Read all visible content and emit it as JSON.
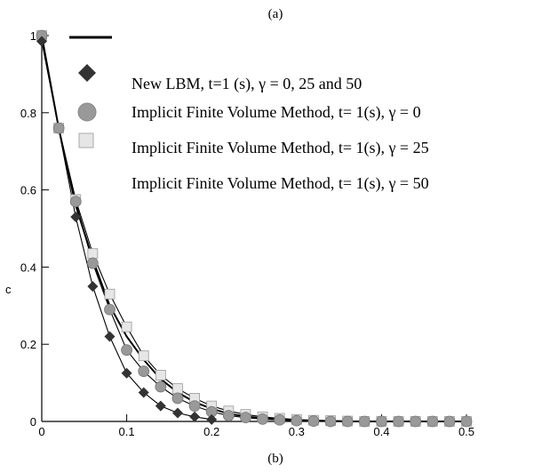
{
  "captions": {
    "top": "(a)",
    "bottom": "(b)"
  },
  "chart_data": {
    "type": "line",
    "title": "",
    "xlabel": "",
    "ylabel": "c",
    "xlim": [
      0,
      0.5
    ],
    "ylim": [
      0,
      1.0
    ],
    "xticks": [
      0,
      0.1,
      0.2,
      0.3,
      0.4,
      0.5
    ],
    "xtick_labels": [
      "0",
      "0.1",
      "0.2",
      "0.3",
      "0.4",
      "0.5"
    ],
    "yticks": [
      0,
      0.2,
      0.4,
      0.6,
      0.8,
      1.0
    ],
    "ytick_labels": [
      "0",
      "0.2",
      "0.4",
      "0.6",
      "0.8",
      "1"
    ],
    "grid": false,
    "legend_position": "top-right",
    "line_series": {
      "name": "",
      "x": [
        0,
        0.02,
        0.04,
        0.06,
        0.08,
        0.1,
        0.12,
        0.14,
        0.16,
        0.18,
        0.2,
        0.22,
        0.24,
        0.26,
        0.28,
        0.3,
        0.32,
        0.34,
        0.36,
        0.38,
        0.4,
        0.42,
        0.44,
        0.46,
        0.48,
        0.5
      ],
      "y": [
        1.0,
        0.76,
        0.56,
        0.42,
        0.3,
        0.22,
        0.16,
        0.11,
        0.075,
        0.05,
        0.033,
        0.02,
        0.013,
        0.008,
        0.005,
        0.003,
        0.002,
        0.001,
        0,
        0,
        0,
        0,
        0,
        0,
        0,
        0
      ]
    },
    "series": [
      {
        "name": "New LBM, t=1 (s), γ = 0, 25 and 50",
        "marker": "diamond",
        "color": "#333333",
        "x": [
          0,
          0.04,
          0.06,
          0.08,
          0.1,
          0.12,
          0.14,
          0.16,
          0.18,
          0.2
        ],
        "y": [
          0.985,
          0.53,
          0.35,
          0.22,
          0.125,
          0.075,
          0.04,
          0.022,
          0.012,
          0.005
        ]
      },
      {
        "name": "Implicit Finite Volume Method, t= 1(s), γ = 0",
        "marker": "circle",
        "color": "#999999",
        "x": [
          0,
          0.02,
          0.04,
          0.06,
          0.08,
          0.1,
          0.12,
          0.14,
          0.16,
          0.18,
          0.2,
          0.22,
          0.24,
          0.26,
          0.28,
          0.3,
          0.32,
          0.34,
          0.36,
          0.38,
          0.4,
          0.42,
          0.44,
          0.46,
          0.48,
          0.5
        ],
        "y": [
          1.0,
          0.76,
          0.57,
          0.41,
          0.29,
          0.185,
          0.13,
          0.09,
          0.06,
          0.04,
          0.025,
          0.015,
          0.01,
          0.006,
          0.004,
          0.002,
          0.001,
          0,
          0,
          0,
          0,
          0,
          0,
          0,
          0,
          0
        ]
      },
      {
        "name": "Implicit Finite Volume Method, t= 1(s), γ = 25",
        "marker": "square",
        "color": "#e6e6e6",
        "x": [
          0,
          0.02,
          0.04,
          0.06,
          0.08,
          0.1,
          0.12,
          0.14,
          0.16,
          0.18,
          0.2,
          0.22,
          0.24,
          0.26,
          0.28,
          0.3,
          0.32,
          0.34,
          0.36,
          0.38,
          0.4,
          0.42,
          0.44,
          0.46,
          0.48,
          0.5
        ],
        "y": [
          1.0,
          0.76,
          0.575,
          0.435,
          0.33,
          0.245,
          0.17,
          0.12,
          0.085,
          0.06,
          0.04,
          0.027,
          0.018,
          0.012,
          0.008,
          0.005,
          0.003,
          0.002,
          0.001,
          0,
          0,
          0,
          0,
          0,
          0,
          0
        ]
      },
      {
        "name": "Implicit Finite Volume Method, t= 1(s), γ = 50",
        "marker": "none",
        "color": "#000000",
        "x": [],
        "y": []
      }
    ]
  }
}
